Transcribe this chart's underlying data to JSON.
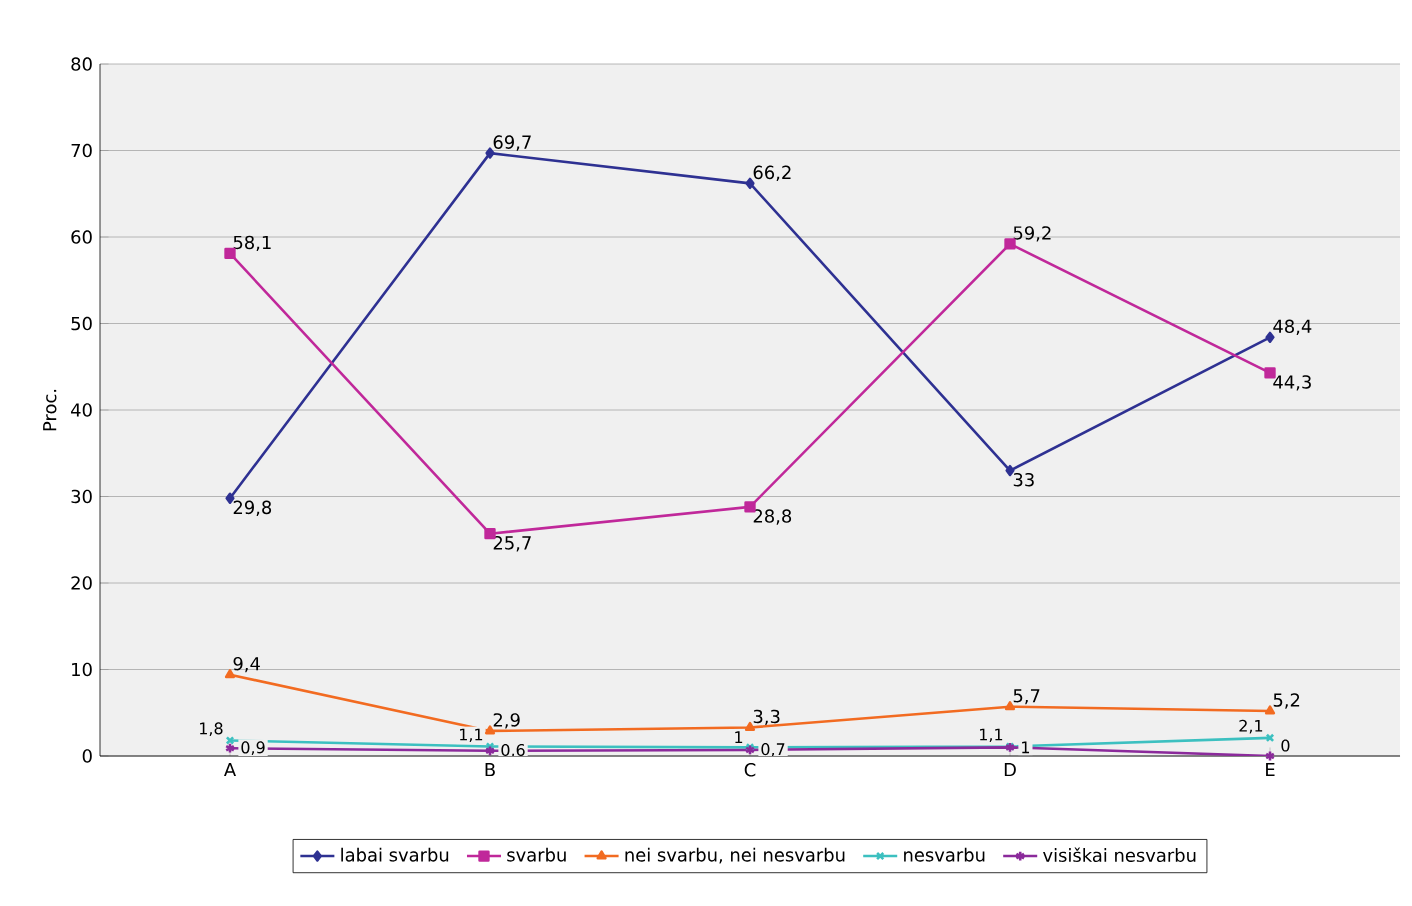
{
  "chart_data": {
    "type": "line",
    "ylabel": "Proc.",
    "categories": [
      "A",
      "B",
      "C",
      "D",
      "E"
    ],
    "ylim": [
      0,
      80
    ],
    "yticks": [
      0,
      10,
      20,
      30,
      40,
      50,
      60,
      70,
      80
    ],
    "grid": "y",
    "legend": "bottom",
    "series": [
      {
        "name": "labai svarbu",
        "color": "#2e3192",
        "marker": "diamond",
        "values": [
          29.8,
          69.7,
          66.2,
          33,
          48.4
        ],
        "value_labels": [
          "29,8",
          "69,7",
          "66,2",
          "33",
          "48,4"
        ]
      },
      {
        "name": "svarbu",
        "color": "#c0289a",
        "marker": "square",
        "values": [
          58.1,
          25.7,
          28.8,
          59.2,
          44.3
        ],
        "value_labels": [
          "58,1",
          "25,7",
          "28,8",
          "59,2",
          "44,3"
        ]
      },
      {
        "name": "nei svarbu, nei nesvarbu",
        "color": "#f26b21",
        "marker": "triangle",
        "values": [
          9.4,
          2.9,
          3.3,
          5.7,
          5.2
        ],
        "value_labels": [
          "9,4",
          "2,9",
          "3,3",
          "5,7",
          "5,2"
        ]
      },
      {
        "name": "nesvarbu",
        "color": "#3cc0c0",
        "marker": "cross",
        "values": [
          1.8,
          1.1,
          1,
          1.1,
          2.1
        ],
        "value_labels": [
          "1,8",
          "1,1",
          "1",
          "1,1",
          "2,1"
        ]
      },
      {
        "name": "visiškai nesvarbu",
        "color": "#8b2a9b",
        "marker": "cross",
        "values": [
          0.9,
          0.6,
          0.7,
          1,
          0
        ],
        "value_labels": [
          "0,9",
          "0,6",
          "0,7",
          "1",
          "0"
        ]
      }
    ]
  }
}
